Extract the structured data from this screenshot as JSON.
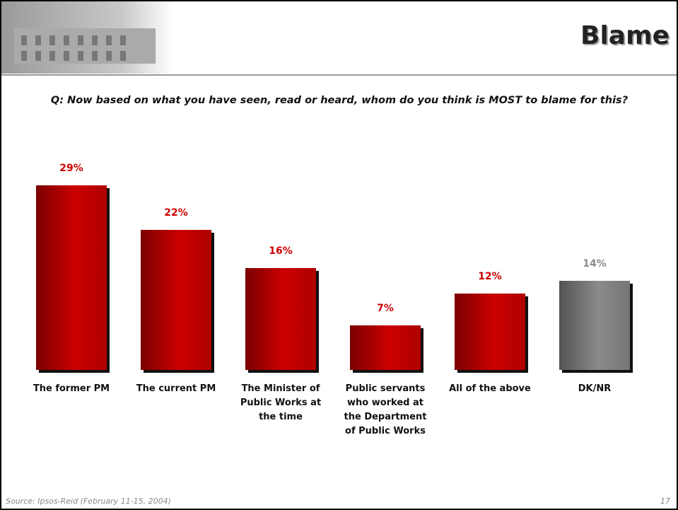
{
  "chart_data": {
    "type": "bar",
    "title": "Blame",
    "subtitle": "Q: Now based on what you have seen, read or heard, whom do you think is MOST to blame for this?",
    "categories": [
      "The former PM",
      "The current PM",
      "The Minister of Public Works at the time",
      "Public servants who worked at the Department of Public Works",
      "All of the above",
      "DK/NR"
    ],
    "values": [
      29,
      22,
      16,
      7,
      12,
      14
    ],
    "value_labels": [
      "29%",
      "22%",
      "16%",
      "7%",
      "12%",
      "14%"
    ],
    "colors": [
      "#cc0000",
      "#cc0000",
      "#cc0000",
      "#cc0000",
      "#cc0000",
      "#8a8a8a"
    ],
    "source": "Source: Ipsos-Reid (February 11-15, 2004)",
    "page_number": "17"
  }
}
